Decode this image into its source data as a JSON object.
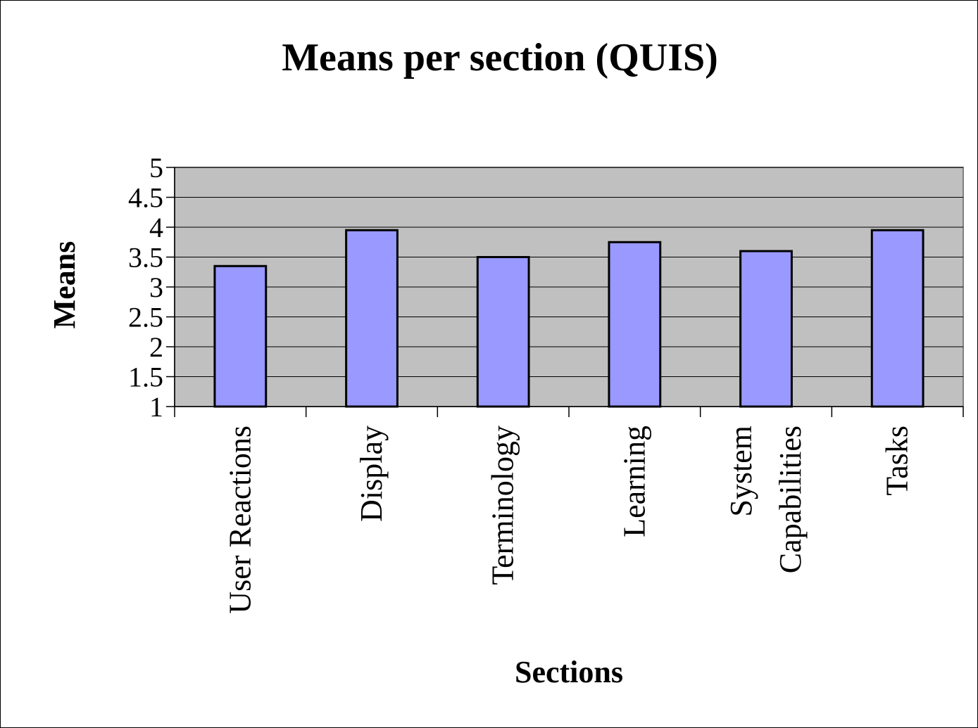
{
  "chart_data": {
    "type": "bar",
    "title": "Means per section (QUIS)",
    "x_label": "Sections",
    "y_label": "Means",
    "categories": [
      "User Reactions",
      "Display",
      "Terminology",
      "Learning",
      "System Capabilities",
      "Tasks"
    ],
    "values": [
      3.35,
      3.95,
      3.5,
      3.75,
      3.6,
      3.95
    ],
    "color": "#9999ff",
    "ylim": [
      1,
      5
    ],
    "yticks": [
      1,
      1.5,
      2,
      2.5,
      3,
      3.5,
      4,
      4.5,
      5
    ],
    "grid": true
  }
}
